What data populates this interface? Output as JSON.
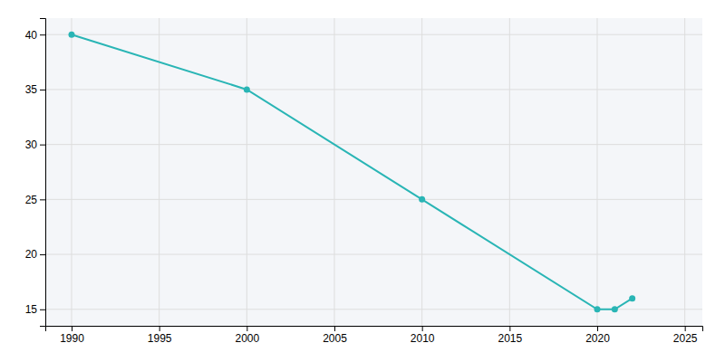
{
  "chart_data": {
    "type": "line",
    "x": [
      1990,
      2000,
      2010,
      2020,
      2021,
      2022
    ],
    "values": [
      40,
      35,
      25,
      15,
      15,
      16
    ],
    "color": "#29b5b5",
    "marker": "circle",
    "xlim": [
      1988.5,
      2026
    ],
    "ylim": [
      13.5,
      41.5
    ],
    "xticks": [
      1990,
      1995,
      2000,
      2005,
      2010,
      2015,
      2020,
      2025
    ],
    "yticks": [
      15,
      20,
      25,
      30,
      35,
      40
    ],
    "grid": true
  }
}
